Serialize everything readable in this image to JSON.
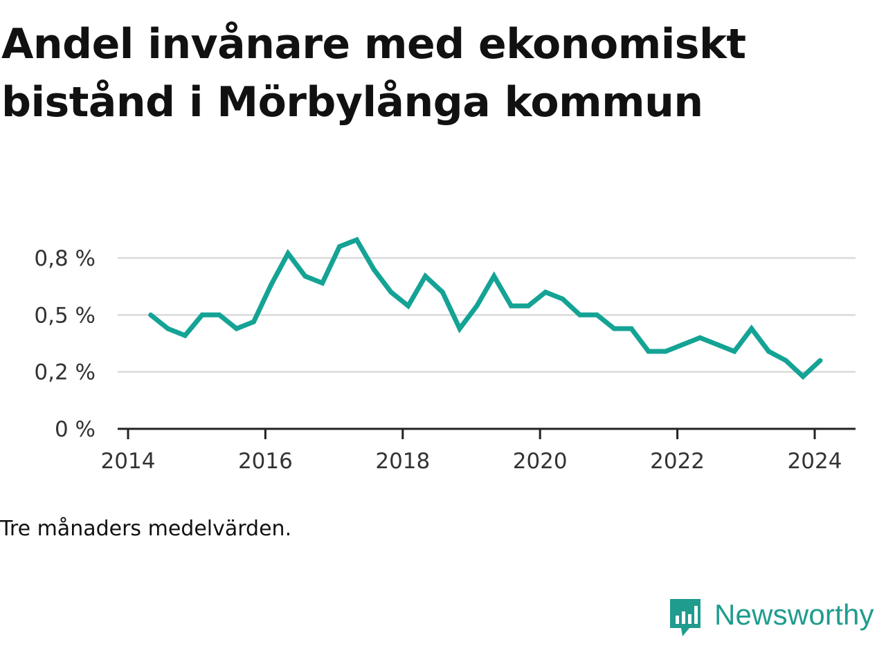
{
  "title": "Andel invånare med ekonomiskt bistånd i Mörbylånga kommun",
  "subtitle": "Tre månaders medelvärden.",
  "brand": {
    "name": "Newsworthy",
    "icon": "newsworthy-logo-icon",
    "color": "#1f9c8e"
  },
  "colors": {
    "line": "#14a395",
    "grid": "#d9d9d9",
    "axis": "#222222",
    "text": "#111111"
  },
  "chart_data": {
    "type": "line",
    "title": "Andel invånare med ekonomiskt bistånd i Mörbylånga kommun",
    "xlabel": "",
    "ylabel": "",
    "ylim": [
      0,
      0.85
    ],
    "xlim": [
      2014.0,
      2024.75
    ],
    "y_ticks": [
      {
        "value": 0,
        "label": "0 %"
      },
      {
        "value": 0.25,
        "label": "0,2 %"
      },
      {
        "value": 0.5,
        "label": "0,5 %"
      },
      {
        "value": 0.75,
        "label": "0,8 %"
      }
    ],
    "x_ticks": [
      {
        "value": 2014,
        "label": "2014"
      },
      {
        "value": 2016,
        "label": "2016"
      },
      {
        "value": 2018,
        "label": "2018"
      },
      {
        "value": 2020,
        "label": "2020"
      },
      {
        "value": 2022,
        "label": "2022"
      },
      {
        "value": 2024,
        "label": "2024"
      }
    ],
    "grid": true,
    "legend": "none",
    "series": [
      {
        "x": [
          2014.33,
          2014.58,
          2014.83,
          2015.08,
          2015.33,
          2015.58,
          2015.83,
          2016.08,
          2016.33,
          2016.58,
          2016.83,
          2017.08,
          2017.33,
          2017.58,
          2017.83,
          2018.08,
          2018.33,
          2018.58,
          2018.83,
          2019.08,
          2019.33,
          2019.58,
          2019.83,
          2020.08,
          2020.33,
          2020.58,
          2020.83,
          2021.08,
          2021.33,
          2021.58,
          2021.83,
          2022.08,
          2022.33,
          2022.58,
          2022.83,
          2023.08,
          2023.33,
          2023.58,
          2023.83,
          2024.08
        ],
        "values": [
          0.5,
          0.44,
          0.41,
          0.5,
          0.5,
          0.44,
          0.47,
          0.63,
          0.77,
          0.67,
          0.64,
          0.8,
          0.83,
          0.7,
          0.6,
          0.54,
          0.67,
          0.6,
          0.44,
          0.54,
          0.67,
          0.54,
          0.54,
          0.6,
          0.57,
          0.5,
          0.5,
          0.44,
          0.44,
          0.34,
          0.34,
          0.37,
          0.4,
          0.37,
          0.34,
          0.44,
          0.34,
          0.3,
          0.23,
          0.3
        ]
      }
    ]
  }
}
